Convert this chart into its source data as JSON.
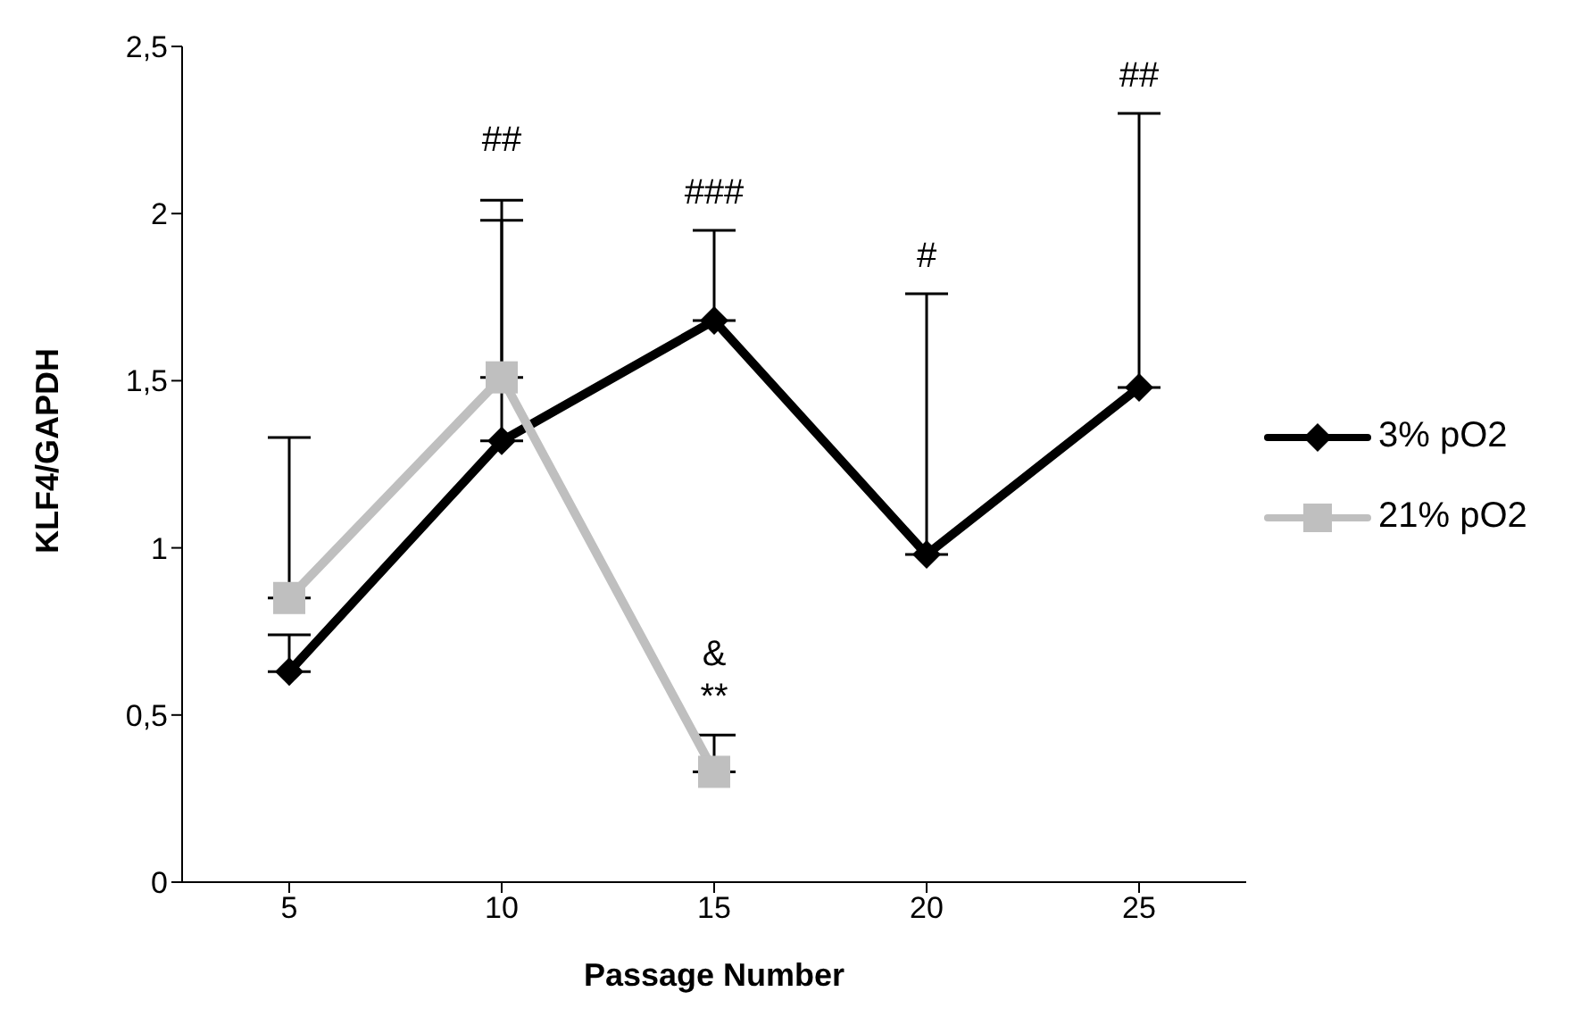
{
  "chart_data": {
    "type": "line",
    "xlabel": "Passage Number",
    "ylabel": "KLF4/GAPDH",
    "categories": [
      "5",
      "10",
      "15",
      "20",
      "25"
    ],
    "series": [
      {
        "name": "3% pO2",
        "color": "#000000",
        "marker": "diamond",
        "values": [
          0.63,
          1.32,
          1.68,
          0.98,
          1.48
        ],
        "errors": [
          [
            0.63,
            0.74
          ],
          [
            1.32,
            1.98
          ],
          [
            1.68,
            1.95
          ],
          [
            0.98,
            1.76
          ],
          [
            1.48,
            2.3
          ]
        ]
      },
      {
        "name": "21% pO2",
        "color": "#bfbfbf",
        "marker": "square",
        "values": [
          0.85,
          1.51,
          0.33,
          null,
          null
        ],
        "errors": [
          [
            0.85,
            1.33
          ],
          [
            1.51,
            2.04
          ],
          [
            0.33,
            0.44
          ],
          null,
          null
        ]
      }
    ],
    "ylim": [
      0,
      2.5
    ],
    "yticks": [
      {
        "value": 0,
        "label": "0"
      },
      {
        "value": 0.5,
        "label": "0,5"
      },
      {
        "value": 1,
        "label": "1"
      },
      {
        "value": 1.5,
        "label": "1,5"
      },
      {
        "value": 2,
        "label": "2"
      },
      {
        "value": 2.5,
        "label": "2,5"
      }
    ],
    "grid": false,
    "legend": "right",
    "line_style": "solid",
    "annotations": [
      "##",
      "###",
      "#",
      "##",
      "**",
      "&"
    ]
  }
}
